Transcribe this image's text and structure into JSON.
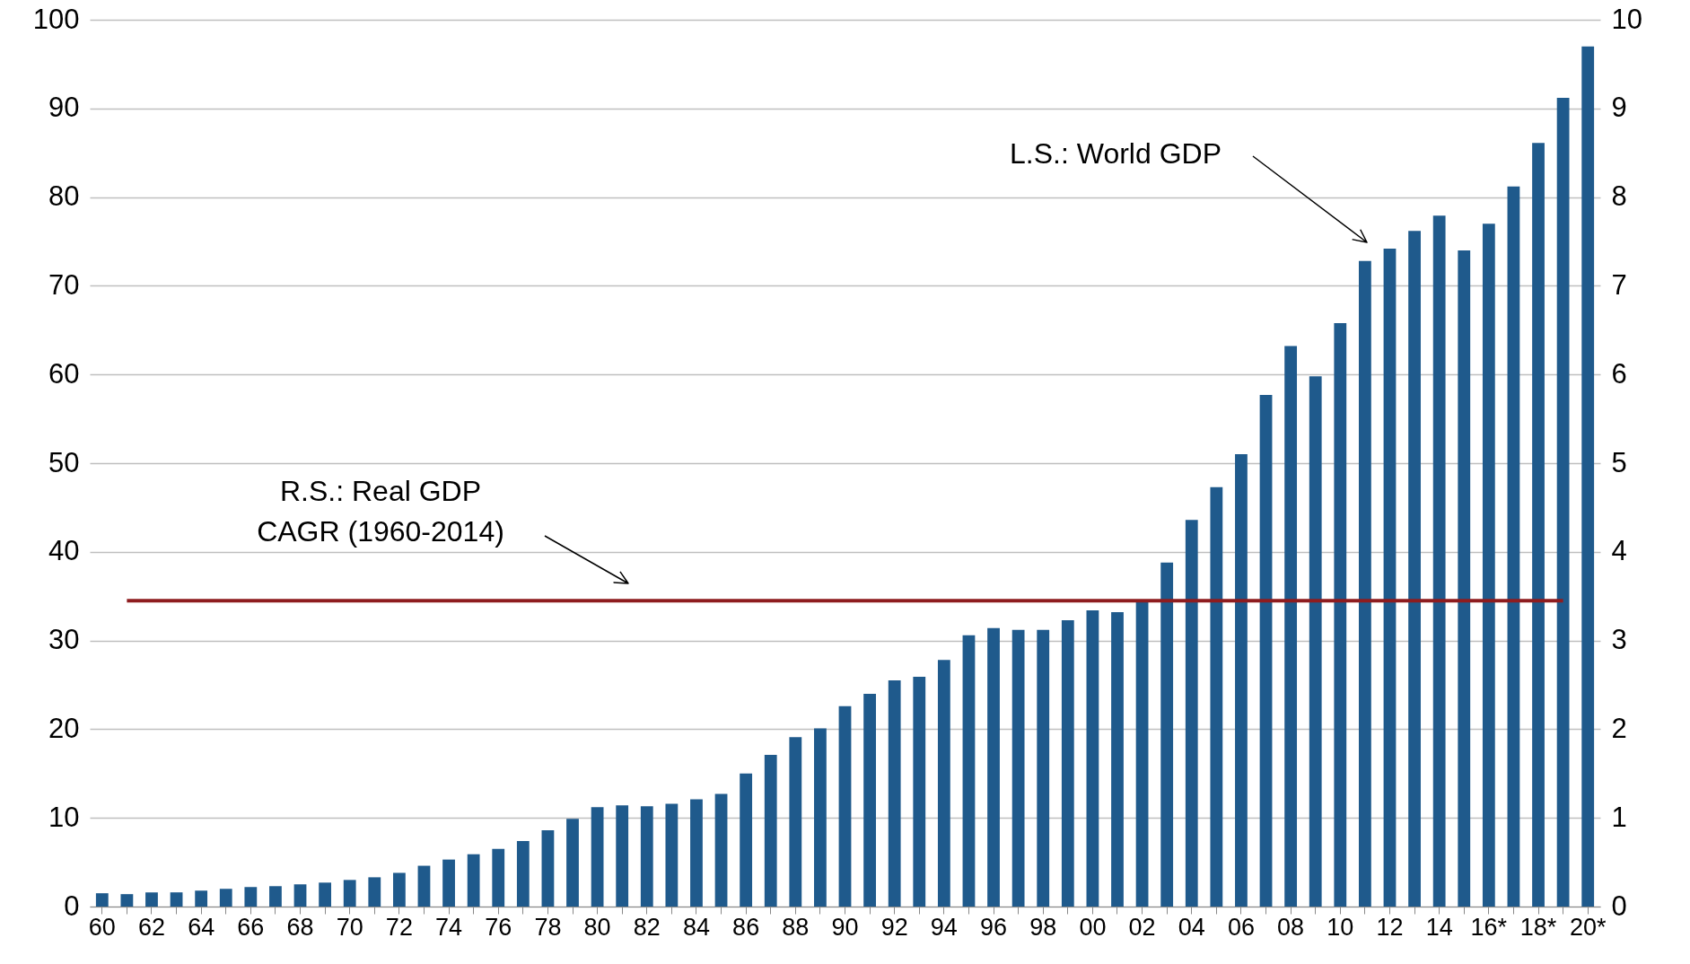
{
  "chart_data": {
    "type": "bar",
    "categories": [
      "60",
      null,
      "62",
      null,
      "64",
      null,
      "66",
      null,
      "68",
      null,
      "70",
      null,
      "72",
      null,
      "74",
      null,
      "76",
      null,
      "78",
      null,
      "80",
      null,
      "82",
      null,
      "84",
      null,
      "86",
      null,
      "88",
      null,
      "90",
      null,
      "92",
      null,
      "94",
      null,
      "96",
      null,
      "98",
      null,
      "00",
      null,
      "02",
      null,
      "04",
      null,
      "06",
      null,
      "08",
      null,
      "10",
      null,
      "12",
      null,
      "14",
      null,
      "16*",
      null,
      "18*",
      null,
      "20*"
    ],
    "series": [
      {
        "color": "#1f5a8c",
        "values": [
          1.5,
          1.4,
          1.6,
          1.6,
          1.8,
          2.0,
          2.2,
          2.3,
          2.5,
          2.7,
          3.0,
          3.3,
          3.8,
          4.6,
          5.3,
          5.9,
          6.5,
          7.4,
          8.6,
          9.9,
          11.2,
          11.4,
          11.3,
          11.6,
          12.1,
          12.7,
          15.0,
          17.1,
          19.1,
          20.1,
          22.6,
          24.0,
          25.5,
          25.9,
          27.8,
          30.6,
          31.4,
          31.2,
          31.2,
          32.3,
          33.4,
          33.2,
          34.6,
          38.8,
          43.6,
          47.3,
          51.0,
          57.7,
          63.2,
          59.8,
          65.8,
          72.8,
          74.2,
          76.2,
          77.9,
          74.0,
          77.0,
          81.2,
          86.1,
          91.2,
          97.0
        ]
      },
      {
        "type": "line",
        "axis": "y2",
        "color": "#8e1c1f",
        "values": [
          null,
          3.45,
          3.45,
          3.45,
          3.45,
          3.45,
          3.45,
          3.45,
          3.45,
          3.45,
          3.45,
          3.45,
          3.45,
          3.45,
          3.45,
          3.45,
          3.45,
          3.45,
          3.45,
          3.45,
          3.45,
          3.45,
          3.45,
          3.45,
          3.45,
          3.45,
          3.45,
          3.45,
          3.45,
          3.45,
          3.45,
          3.45,
          3.45,
          3.45,
          3.45,
          3.45,
          3.45,
          3.45,
          3.45,
          3.45,
          3.45,
          3.45,
          3.45,
          3.45,
          3.45,
          3.45,
          3.45,
          3.45,
          3.45,
          3.45,
          3.45,
          3.45,
          3.45,
          3.45,
          3.45,
          3.45,
          3.45,
          3.45,
          3.45,
          3.45,
          null
        ]
      }
    ],
    "ylim": [
      0,
      100
    ],
    "yticks": [
      0,
      10,
      20,
      30,
      40,
      50,
      60,
      70,
      80,
      90,
      100
    ],
    "y2lim": [
      0,
      10
    ],
    "y2ticks": [
      0,
      1,
      2,
      3,
      4,
      5,
      6,
      7,
      8,
      9,
      10
    ],
    "grid": "y",
    "line_style": "solid",
    "marker": "none",
    "annotations": [
      "L.S.: World GDP",
      "R.S.: Real GDP\nCAGR (1960-2014)"
    ]
  }
}
